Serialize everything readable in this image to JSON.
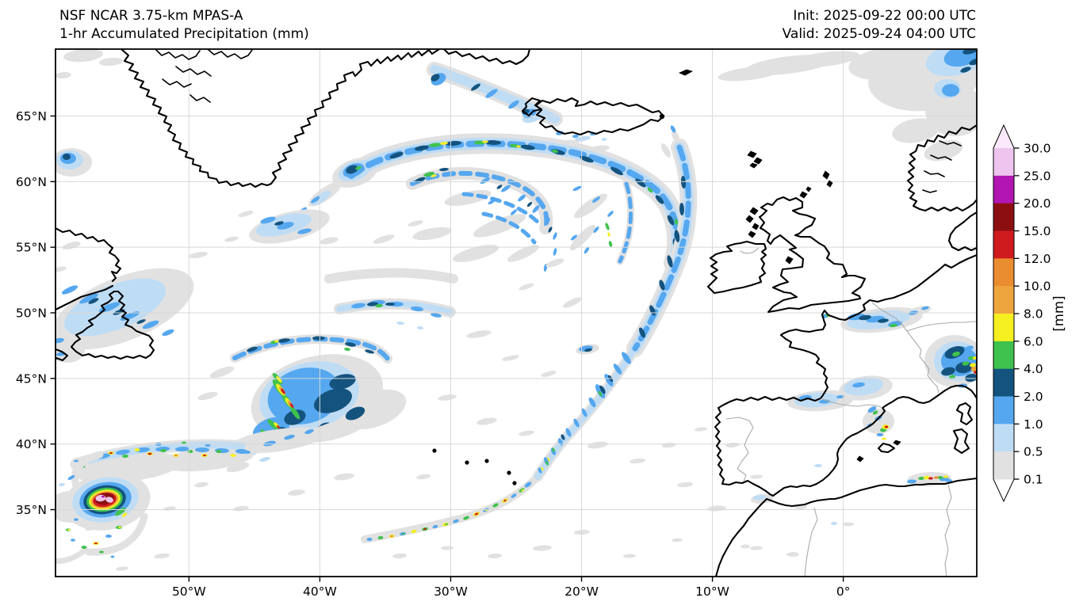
{
  "figure": {
    "title_line1": "NSF NCAR 3.75-km MPAS-A",
    "title_line2": "1-hr Accumulated Precipitation (mm)",
    "init_label": "Init: 2025-09-22 00:00 UTC",
    "valid_label": "Valid: 2025-09-24 04:00 UTC"
  },
  "map": {
    "extent": {
      "lon_min": -60.2,
      "lon_max": 10.2,
      "lat_min": 29.9,
      "lat_max": 70.1
    },
    "lon_ticks": [
      {
        "value": -50,
        "label": "50°W"
      },
      {
        "value": -40,
        "label": "40°W"
      },
      {
        "value": -30,
        "label": "30°W"
      },
      {
        "value": -20,
        "label": "20°W"
      },
      {
        "value": -10,
        "label": "10°W"
      },
      {
        "value": 0,
        "label": "0°"
      }
    ],
    "lat_ticks": [
      {
        "value": 65,
        "label": "65°N"
      },
      {
        "value": 60,
        "label": "60°N"
      },
      {
        "value": 55,
        "label": "55°N"
      },
      {
        "value": 50,
        "label": "50°N"
      },
      {
        "value": 45,
        "label": "45°N"
      },
      {
        "value": 40,
        "label": "40°N"
      },
      {
        "value": 35,
        "label": "35°N"
      }
    ],
    "grid_color": "#d8d8d8",
    "coastline_color": "#000000",
    "border_color": "#aaaaaa",
    "ocean_color": "#ffffff"
  },
  "colorbar": {
    "unit": "[mm]",
    "tick_labels": [
      "30.0",
      "25.0",
      "20.0",
      "15.0",
      "12.0",
      "10.0",
      "8.0",
      "6.0",
      "4.0",
      "2.0",
      "1.0",
      "0.5",
      "0.1"
    ],
    "segment_colors_top_to_bottom": [
      "#edc4ed",
      "#b215b2",
      "#8b0f11",
      "#cf1b1d",
      "#ea8c30",
      "#efa53e",
      "#f6ef21",
      "#3fc24d",
      "#14537e",
      "#55a7ef",
      "#bfdcf5",
      "#e1e1e1"
    ],
    "over_color": "#fae9fa",
    "under_color": "#ffffff"
  }
}
